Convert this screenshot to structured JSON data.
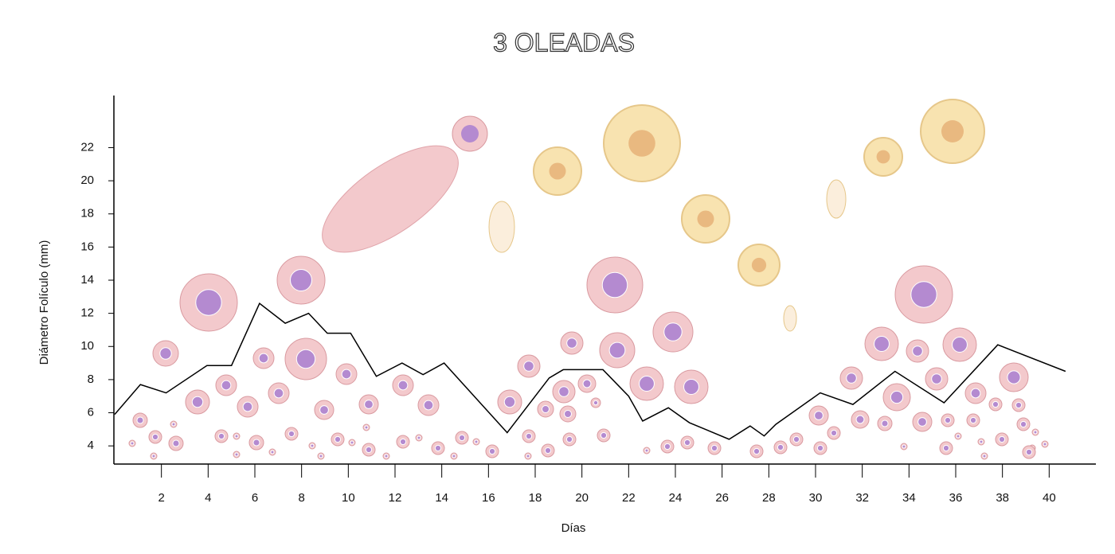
{
  "chart_data": {
    "type": "line",
    "title": "3 OLEADAS",
    "x_label": "Días",
    "y_label": "Diámetro Folículo (mm)",
    "x": [
      0,
      1.1,
      2.2,
      3.95,
      5.0,
      6.2,
      7.3,
      8.3,
      9.1,
      10.1,
      11.2,
      12.3,
      13.2,
      14.1,
      16.8,
      18.6,
      19.2,
      20.9,
      22.0,
      22.6,
      23.7,
      24.6,
      26.3,
      27.2,
      27.8,
      28.3,
      30.2,
      31.6,
      33.4,
      35.5,
      37.8,
      40.7
    ],
    "values": [
      5.9,
      7.7,
      7.2,
      8.85,
      8.85,
      12.6,
      11.4,
      12.0,
      10.8,
      10.8,
      8.2,
      9.0,
      8.3,
      9.0,
      4.8,
      8.1,
      8.6,
      8.6,
      7.0,
      5.5,
      6.3,
      5.4,
      4.4,
      5.2,
      4.6,
      5.3,
      7.2,
      6.5,
      8.5,
      6.6,
      10.1,
      8.5
    ],
    "color": "#000000",
    "xlim": [
      0,
      42
    ],
    "xticks": [
      2,
      4,
      6,
      8,
      10,
      12,
      14,
      16,
      18,
      20,
      22,
      24,
      26,
      28,
      30,
      32,
      34,
      36,
      38,
      40
    ],
    "ylim": [
      3,
      25
    ],
    "yticks": [
      4,
      6,
      8,
      10,
      12,
      14,
      16,
      18,
      20,
      22
    ]
  }
}
